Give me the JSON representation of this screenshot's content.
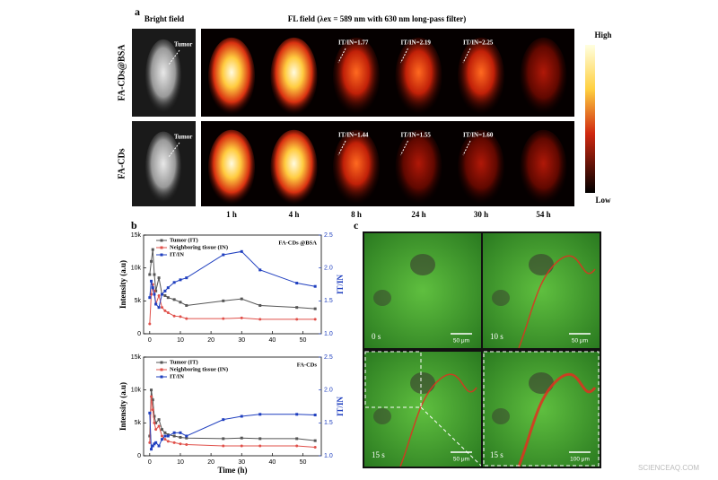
{
  "panel_a": {
    "label": "a",
    "bright_title": "Bright field",
    "fl_title": "FL field (λex = 589 nm with 630 nm long-pass filter)",
    "rows": [
      "FA-CDs@BSA",
      "FA-CDs"
    ],
    "tumor_labels": [
      "Tumor",
      "Tumor"
    ],
    "ratios": [
      [
        "IT/IN=1.77",
        "IT/IN=2.19",
        "IT/IN=2.25"
      ],
      [
        "IT/IN=1.44",
        "IT/IN=1.55",
        "IT/IN=1.60"
      ]
    ],
    "times": [
      "1 h",
      "4 h",
      "8 h",
      "24 h",
      "30 h",
      "54 h"
    ],
    "colorbar_high": "High",
    "colorbar_low": "Low"
  },
  "panel_b_label": "b",
  "chart_data": [
    {
      "type": "line",
      "annotation": "FA-CDs @BSA",
      "ylabel": "Intensity (a.u)",
      "y2label": "IT/IN",
      "x": [
        0,
        0.5,
        1,
        1.5,
        2,
        3,
        4,
        5,
        6,
        8,
        10,
        12,
        24,
        30,
        36,
        48,
        54
      ],
      "xlim": [
        -2,
        56
      ],
      "xticks": [
        0,
        10,
        20,
        30,
        40,
        50
      ],
      "ylim": [
        0,
        15000
      ],
      "yticks": [
        0,
        {
          "value": 5000,
          "label": "5k"
        },
        {
          "value": 10000,
          "label": "10k"
        },
        {
          "value": 15000,
          "label": "15k"
        }
      ],
      "y2lim": [
        1,
        2.5
      ],
      "y2ticks": [
        {
          "value": 1,
          "label": "1.0"
        },
        1.5,
        {
          "value": 2,
          "label": "2.0"
        },
        2.5
      ],
      "series": [
        {
          "name": "Tumor (IT)",
          "color": "#555555",
          "marker": "square",
          "values": [
            9000,
            11000,
            12800,
            9000,
            6500,
            8500,
            6000,
            5800,
            5500,
            5200,
            4800,
            4300,
            5000,
            5300,
            4300,
            4000,
            3800
          ]
        },
        {
          "name": "Neighboring tissue (IN)",
          "color": "#e0504a",
          "marker": "circle",
          "values": [
            1500,
            6000,
            7500,
            6500,
            4500,
            5800,
            4000,
            3500,
            3200,
            2700,
            2600,
            2300,
            2300,
            2400,
            2200,
            2200,
            2200
          ]
        },
        {
          "name": "IT/IN",
          "color": "#1f3fbf",
          "marker": "square",
          "axis": "y2",
          "values": [
            1.55,
            1.8,
            1.7,
            1.6,
            1.45,
            1.4,
            1.6,
            1.65,
            1.7,
            1.78,
            1.82,
            1.85,
            2.2,
            2.25,
            1.97,
            1.77,
            1.72
          ]
        }
      ]
    },
    {
      "type": "line",
      "annotation": "FA-CDs",
      "ylabel": "Intensity (a.u)",
      "y2label": "IT/IN",
      "xlabel": "Time (h)",
      "x": [
        0,
        0.5,
        1,
        1.5,
        2,
        3,
        4,
        5,
        6,
        8,
        10,
        12,
        24,
        30,
        36,
        48,
        54
      ],
      "xlim": [
        -2,
        56
      ],
      "xticks": [
        0,
        10,
        20,
        30,
        40,
        50
      ],
      "ylim": [
        0,
        15000
      ],
      "yticks": [
        0,
        {
          "value": 5000,
          "label": "5k"
        },
        {
          "value": 10000,
          "label": "10k"
        },
        {
          "value": 15000,
          "label": "15k"
        }
      ],
      "y2lim": [
        1,
        2.5
      ],
      "y2ticks": [
        {
          "value": 1,
          "label": "1.0"
        },
        1.5,
        {
          "value": 2,
          "label": "2.0"
        },
        2.5
      ],
      "series": [
        {
          "name": "Tumor (IT)",
          "color": "#555555",
          "marker": "square",
          "values": [
            3000,
            10000,
            8500,
            6000,
            5000,
            5500,
            4000,
            3500,
            3200,
            3000,
            2800,
            2700,
            2600,
            2700,
            2600,
            2600,
            2300
          ]
        },
        {
          "name": "Neighboring tissue (IN)",
          "color": "#e0504a",
          "marker": "circle",
          "values": [
            2000,
            9000,
            7000,
            5000,
            4000,
            4500,
            3000,
            2500,
            2200,
            2000,
            1800,
            1700,
            1500,
            1500,
            1500,
            1500,
            1300
          ]
        },
        {
          "name": "IT/IN",
          "color": "#1f3fbf",
          "marker": "square",
          "axis": "y2",
          "values": [
            1.65,
            1.1,
            1.15,
            1.18,
            1.2,
            1.15,
            1.25,
            1.3,
            1.3,
            1.35,
            1.35,
            1.3,
            1.55,
            1.6,
            1.63,
            1.63,
            1.62
          ]
        }
      ]
    }
  ],
  "panel_c": {
    "label": "c",
    "times": [
      "0 s",
      "10 s",
      "15 s",
      "15 s"
    ],
    "scales": [
      "50 μm",
      "50 μm",
      "50 μm",
      "100 μm"
    ]
  },
  "watermark": "SCIENCEAQ.COM"
}
